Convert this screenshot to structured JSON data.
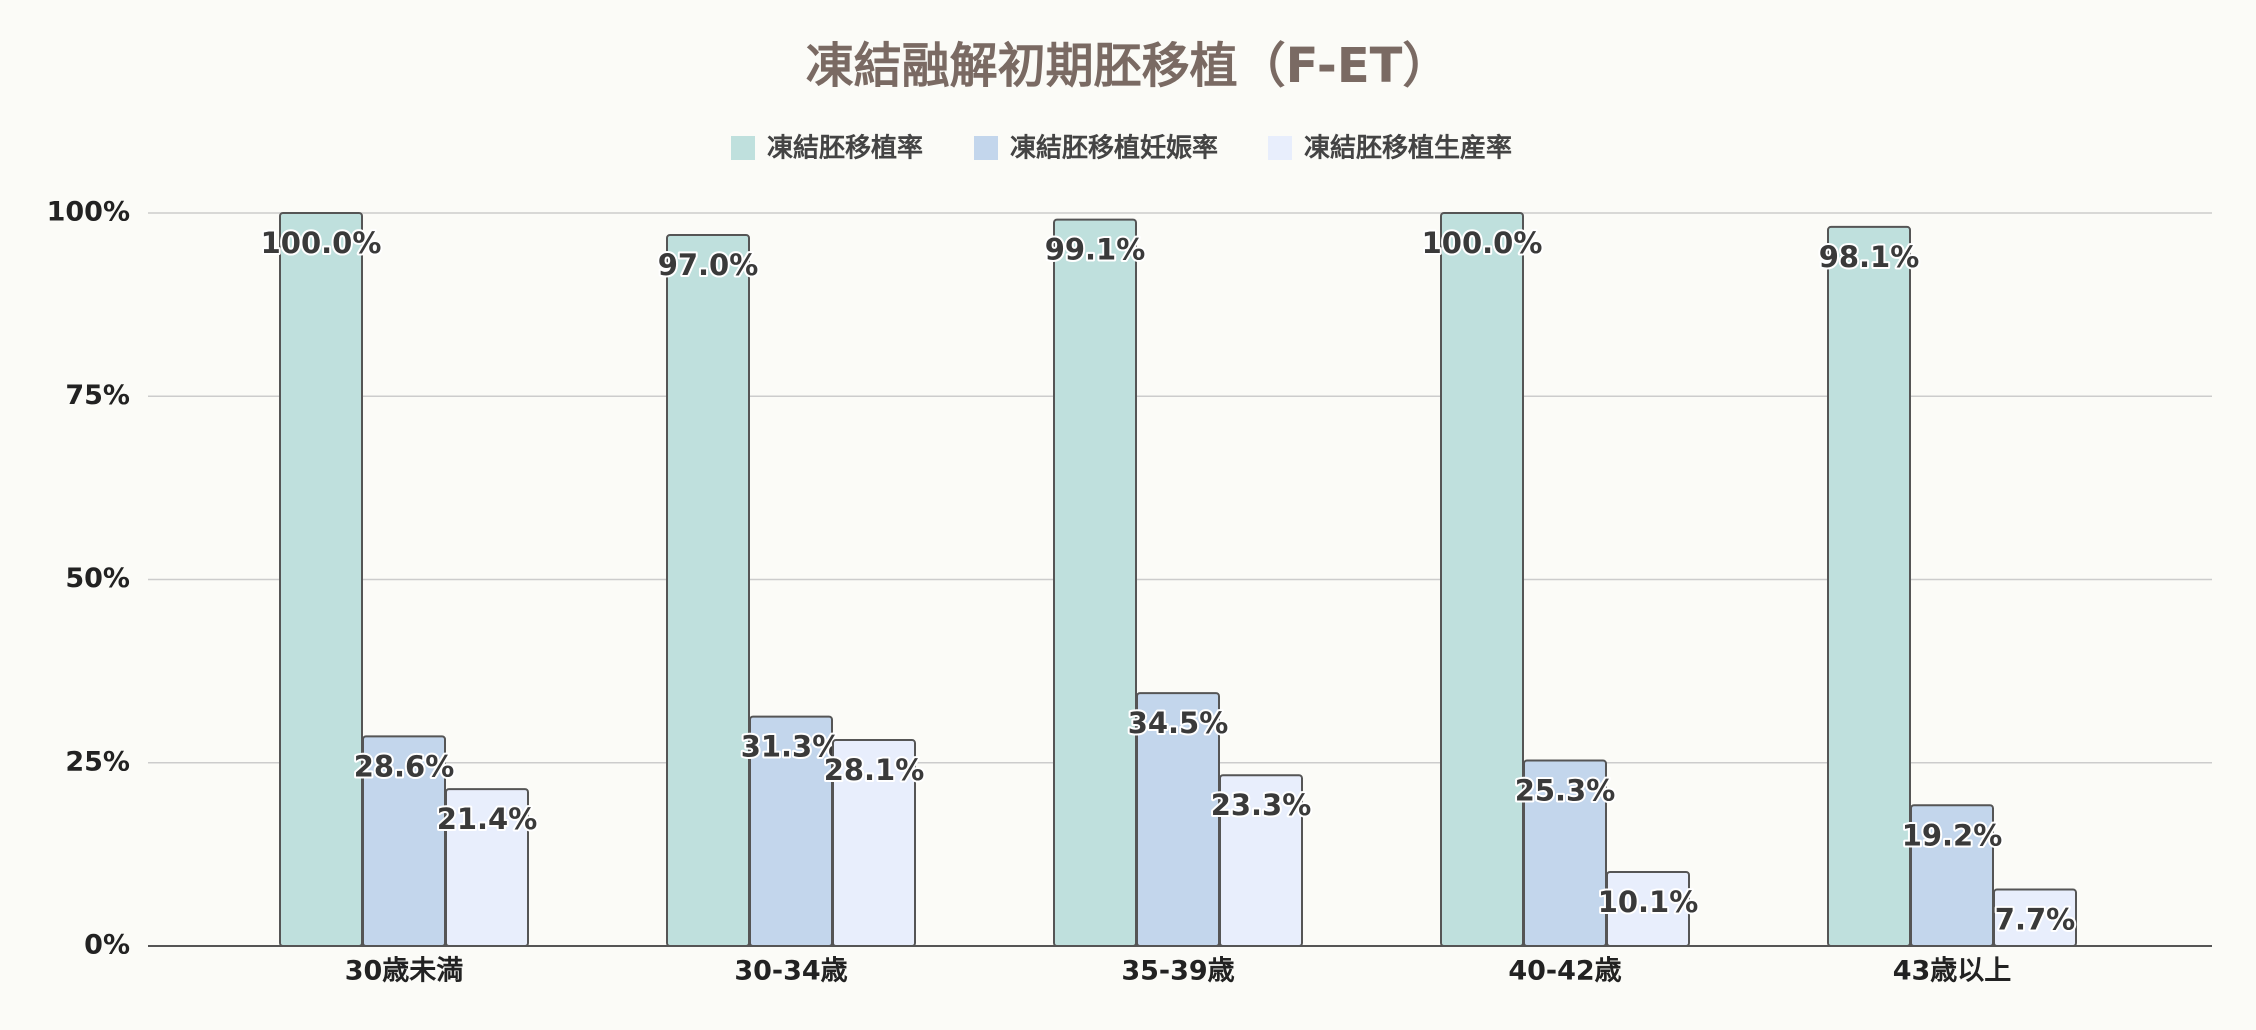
{
  "chart_data": {
    "type": "bar",
    "title": "凍結融解初期胚移植（F-ET）",
    "categories": [
      "30歳未満",
      "30-34歳",
      "35-39歳",
      "40-42歳",
      "43歳以上"
    ],
    "series": [
      {
        "name": "凍結胚移植率",
        "color": "#bfe0dd",
        "values": [
          100.0,
          97.0,
          99.1,
          100.0,
          98.1
        ],
        "value_labels": [
          "100.0%",
          "97.0%",
          "99.1%",
          "100.0%",
          "98.1%"
        ]
      },
      {
        "name": "凍結胚移植妊娠率",
        "color": "#c3d6ec",
        "values": [
          28.6,
          31.3,
          34.5,
          25.3,
          19.2
        ],
        "value_labels": [
          "28.6%",
          "31.3%",
          "34.5%",
          "25.3%",
          "19.2%"
        ]
      },
      {
        "name": "凍結胚移植生産率",
        "color": "#e8eefc",
        "values": [
          21.4,
          28.1,
          23.3,
          10.1,
          7.7
        ],
        "value_labels": [
          "21.4%",
          "28.1%",
          "23.3%",
          "10.1%",
          "7.7%"
        ]
      }
    ],
    "ylim": [
      0,
      100
    ],
    "yticks": [
      {
        "value": 0,
        "label": "0%"
      },
      {
        "value": 25,
        "label": "25%"
      },
      {
        "value": 50,
        "label": "50%"
      },
      {
        "value": 75,
        "label": "75%"
      },
      {
        "value": 100,
        "label": "100%"
      }
    ],
    "grid": true,
    "legend": "top"
  }
}
